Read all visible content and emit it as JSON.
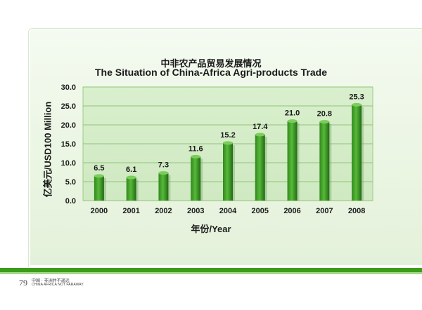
{
  "page": {
    "page_number": "79",
    "footer_cn": "中国 · 非洲并不遥远",
    "footer_en": "CHINA AFRICA NOT FARAWAY"
  },
  "colors": {
    "accent_green": "#3c9d1c",
    "accent_light_green": "#a3d68a",
    "plot_bg": "#cfe9c2",
    "bar_dark": "#1f6b12",
    "bar_light": "#58b83a"
  },
  "chart_data": {
    "type": "bar",
    "title_cn": "中非农产品贸易发展情况",
    "title": "The Situation of China-Africa Agri-products Trade",
    "xlabel": "年份/Year",
    "ylabel": "亿美元/USD100 Million",
    "categories": [
      "2000",
      "2001",
      "2002",
      "2003",
      "2004",
      "2005",
      "2006",
      "2007",
      "2008"
    ],
    "values": [
      6.5,
      6.1,
      7.3,
      11.6,
      15.2,
      17.4,
      21.0,
      20.8,
      25.3
    ],
    "value_labels": [
      "6.5",
      "6.1",
      "7.3",
      "11.6",
      "15.2",
      "17.4",
      "21.0",
      "20.8",
      "25.3"
    ],
    "y_ticks": [
      "0.0",
      "5.0",
      "10.0",
      "15.0",
      "20.0",
      "25.0",
      "30.0"
    ],
    "ylim": [
      0,
      30
    ],
    "grid": true,
    "legend": "none"
  }
}
